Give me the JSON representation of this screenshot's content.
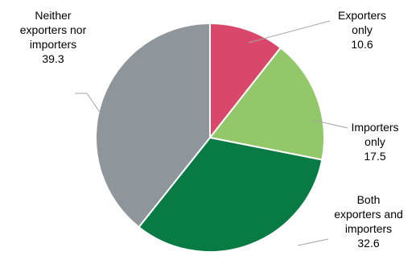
{
  "chart_data": {
    "type": "pie",
    "title": "",
    "slices": [
      {
        "label_lines": [
          "Exporters",
          "only"
        ],
        "value": 10.6,
        "value_label": "10.6",
        "color": "#d9486a"
      },
      {
        "label_lines": [
          "Importers",
          "only"
        ],
        "value": 17.5,
        "value_label": "17.5",
        "color": "#92c86a"
      },
      {
        "label_lines": [
          "Both",
          "exporters and",
          "importers"
        ],
        "value": 32.6,
        "value_label": "32.6",
        "color": "#087a43"
      },
      {
        "label_lines": [
          "Neither",
          "exporters nor",
          "importers"
        ],
        "value": 39.3,
        "value_label": "39.3",
        "color": "#8e959b"
      }
    ],
    "start_angle_deg": 0,
    "direction": "clockwise",
    "legend": "none",
    "label_placement": "outside-with-leader-lines"
  }
}
